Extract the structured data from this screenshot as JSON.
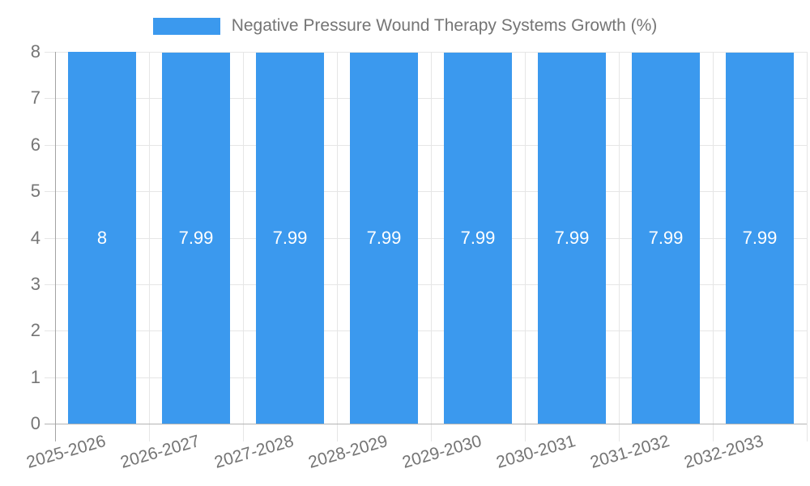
{
  "chart_data": {
    "type": "bar",
    "title": "",
    "legend": {
      "position": "top",
      "label": "Negative Pressure Wound Therapy Systems Growth (%)"
    },
    "categories": [
      "2025-2026",
      "2026-2027",
      "2027-2028",
      "2028-2029",
      "2029-2030",
      "2030-2031",
      "2031-2032",
      "2032-2033"
    ],
    "series": [
      {
        "name": "Negative Pressure Wound Therapy Systems Growth (%)",
        "values": [
          8,
          7.99,
          7.99,
          7.99,
          7.99,
          7.99,
          7.99,
          7.99
        ],
        "data_labels": [
          "8",
          "7.99",
          "7.99",
          "7.99",
          "7.99",
          "7.99",
          "7.99",
          "7.99"
        ],
        "color": "#3B99EE"
      }
    ],
    "xlabel": "",
    "ylabel": "",
    "ylim": [
      0,
      8
    ],
    "y_ticks": [
      "0",
      "1",
      "2",
      "3",
      "4",
      "5",
      "6",
      "7",
      "8"
    ],
    "grid": true,
    "colors": {
      "bar": "#3B99EE",
      "axis_text": "#757575",
      "gridline": "#e6e6e6",
      "baseline": "#b3b3b3",
      "y_axis_line": "#a3a3a3",
      "bar_label_text": "#ffffff",
      "background": "#ffffff"
    }
  }
}
